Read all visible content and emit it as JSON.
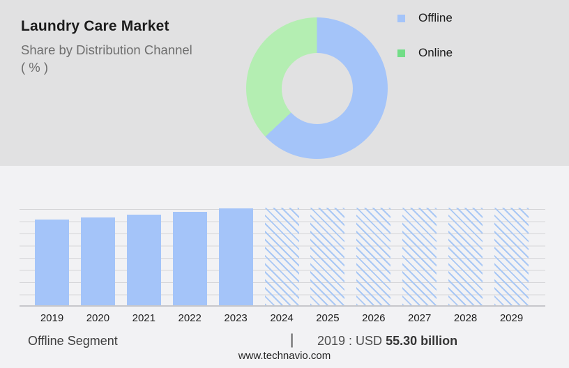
{
  "header": {
    "title": "Laundry Care Market",
    "subtitle": "Share by Distribution Channel",
    "unit": "( % )"
  },
  "chart_data": [
    {
      "type": "pie",
      "subtype": "donut",
      "title": "Laundry Care Market - Share by Distribution Channel ( % )",
      "legend_position": "right",
      "start_angle_deg": 0,
      "direction": "clockwise",
      "series": [
        {
          "label": "Offline",
          "value": 63,
          "color": "#a4c4f9",
          "legend_swatch_color": "#a4c4f9"
        },
        {
          "label": "Online",
          "value": 37,
          "color": "#b4eeb2",
          "legend_swatch_color": "#72dd87"
        }
      ],
      "note": "values estimated from arc angles; no numeric labels shown in image"
    },
    {
      "type": "bar",
      "title": "Offline Segment",
      "categories": [
        "2019",
        "2020",
        "2021",
        "2022",
        "2023",
        "2024",
        "2025",
        "2026",
        "2027",
        "2028",
        "2029"
      ],
      "values_relative": [
        0.88,
        0.9,
        0.93,
        0.96,
        0.99,
        1,
        1,
        1,
        1,
        1,
        1
      ],
      "forecast_categories": [
        "2024",
        "2025",
        "2026",
        "2027",
        "2028",
        "2029"
      ],
      "forecast_style": "diagonal-hatch",
      "yaxis": "none shown (relative heights only)",
      "grid": "horizontal, 9 lines",
      "annotation": "2019 : USD 55.30 billion"
    }
  ],
  "footer": {
    "segment_label": "Offline Segment",
    "divider": "|",
    "value_prefix": "2019 : USD ",
    "value_bold": "55.30 billion",
    "website": "www.technavio.com"
  },
  "colors": {
    "top_background": "#e1e1e2",
    "bottom_background": "#f2f2f4",
    "bar_solid": "#a4c4f9",
    "hatch_line": "#a9c8f5",
    "donut_offline": "#a4c4f9",
    "donut_online": "#b4eeb2",
    "legend_online_swatch": "#72dd87",
    "gridline": "#d5d5d8",
    "baseline": "#c7c7cb"
  }
}
